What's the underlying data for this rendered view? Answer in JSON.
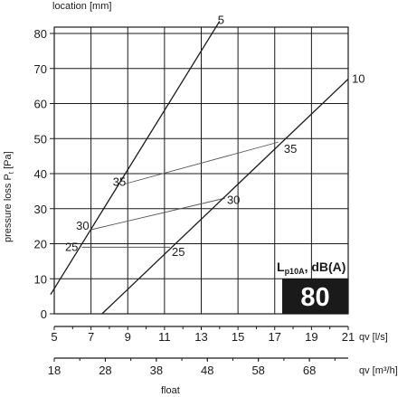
{
  "chart_data": {
    "type": "line",
    "ylabel": "pressure loss P",
    "ylabel_sub": "t",
    "ylabel_unit": " [Pa]",
    "top_label": "location [mm]",
    "xlabel_primary_unit": "qv [l/s]",
    "xlabel_secondary_unit": "qv [m³/h]",
    "bottom_label": "float",
    "x_ticks": [
      5,
      7,
      9,
      11,
      13,
      15,
      17,
      19,
      21
    ],
    "x_secondary_ticks": [
      18,
      28,
      38,
      48,
      58,
      68
    ],
    "y_ticks": [
      0,
      10,
      20,
      30,
      40,
      50,
      60,
      70,
      80
    ],
    "xlim": [
      5,
      21
    ],
    "ylim": [
      0,
      82
    ],
    "grid": true,
    "series": [
      {
        "name": "5",
        "points": [
          [
            4.8,
            5.5
          ],
          [
            14.0,
            83.5
          ]
        ]
      },
      {
        "name": "10",
        "points": [
          [
            7.6,
            0
          ],
          [
            21.0,
            67.0
          ]
        ]
      }
    ],
    "noise_lines": [
      {
        "name": "35",
        "points": [
          [
            8.8,
            37.0
          ],
          [
            17.2,
            49.0
          ]
        ]
      },
      {
        "name": "30",
        "points": [
          [
            7.0,
            24.0
          ],
          [
            14.3,
            33.0
          ]
        ]
      },
      {
        "name": "25",
        "points": [
          [
            6.5,
            19.0
          ],
          [
            11.3,
            19.0
          ]
        ]
      }
    ],
    "labels": [
      {
        "text": "5",
        "x": 13.9,
        "y": 82.7,
        "anchor": "start"
      },
      {
        "text": "10",
        "x": 21.2,
        "y": 66.0,
        "anchor": "start"
      },
      {
        "text": "35",
        "x": 17.5,
        "y": 46.0,
        "anchor": "start"
      },
      {
        "text": "35",
        "x": 8.9,
        "y": 36.5,
        "anchor": "end"
      },
      {
        "text": "30",
        "x": 14.4,
        "y": 31.4,
        "anchor": "start"
      },
      {
        "text": "30",
        "x": 6.9,
        "y": 24.0,
        "anchor": "end"
      },
      {
        "text": "25",
        "x": 11.4,
        "y": 16.5,
        "anchor": "start"
      },
      {
        "text": "25",
        "x": 6.3,
        "y": 18.0,
        "anchor": "end"
      }
    ],
    "badge": {
      "label_main": "L",
      "label_sub": "p10A",
      "label_tail": ", dB(A)",
      "value": "80",
      "background": "#1a1a1a",
      "value_color": "#ffffff"
    }
  }
}
